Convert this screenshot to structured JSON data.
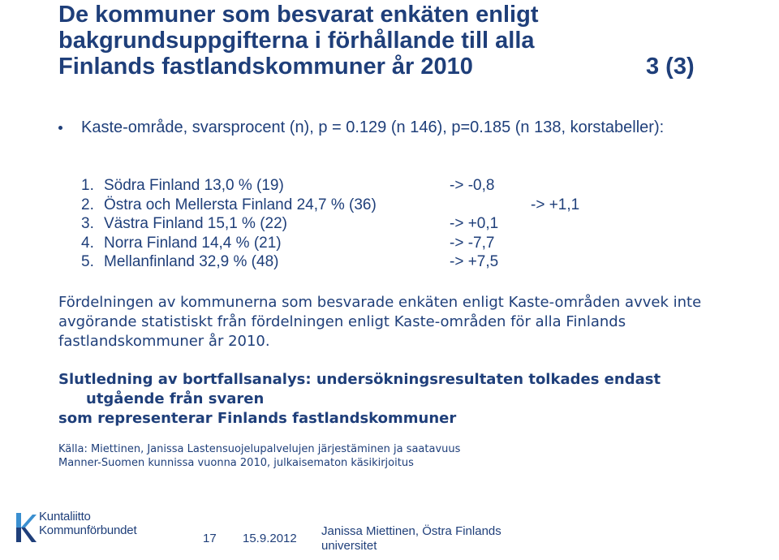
{
  "slide": {
    "title_lines": [
      "De kommuner som besvarat enkäten enligt",
      "bakgrundsuppgifterna i förhållande till alla",
      "Finlands fastlandskommuner år 2010"
    ],
    "title_page": "3 (3)",
    "bullet": "Kaste-område, svarsprocent (n), p = 0.129 (n 146), p=0.185 (n 138, korstabeller):",
    "regions": [
      {
        "num": "1.",
        "name": "Södra Finland 13,0 % (19)",
        "delta": "-> -0,8"
      },
      {
        "num": "2.",
        "name": "Östra och Mellersta Finland 24,7 % (36)",
        "delta": "-> +1,1"
      },
      {
        "num": "3.",
        "name": "Västra Finland 15,1 % (22)",
        "delta": "-> +0,1"
      },
      {
        "num": "4.",
        "name": "Norra Finland 14,4 % (21)",
        "delta": "-> -7,7"
      },
      {
        "num": "5.",
        "name": "Mellanfinland 32,9 % (48)",
        "delta": "-> +7,5"
      }
    ],
    "paragraph": "Fördelningen av kommunerna som besvarade enkäten enligt Kaste-områden avvek inte avgörande statistiskt från fördelningen enligt Kaste-områden för alla Finlands fastlandskommuner år 2010.",
    "conclusion_lines": [
      "Slutledning av bortfallsanalys: undersökningsresultaten tolkades endast",
      "utgående från svaren",
      "som representerar Finlands fastlandskommuner"
    ],
    "source_lines": [
      "Källa: Miettinen, Janissa Lastensuojelupalvelujen järjestäminen ja saatavuus",
      "Manner-Suomen kunnissa vuonna 2010, julkaisematon käsikirjoitus"
    ]
  },
  "footer": {
    "logo_lines": [
      "Kuntaliitto",
      "Kommunförbundet"
    ],
    "page_number": "17",
    "date": "15.9.2012",
    "author": "Janissa Miettinen, Östra Finlands universitet"
  },
  "colors": {
    "text": "#1f3f7a",
    "logo_light": "#3a8fd0",
    "logo_dark": "#1f3f7a"
  }
}
